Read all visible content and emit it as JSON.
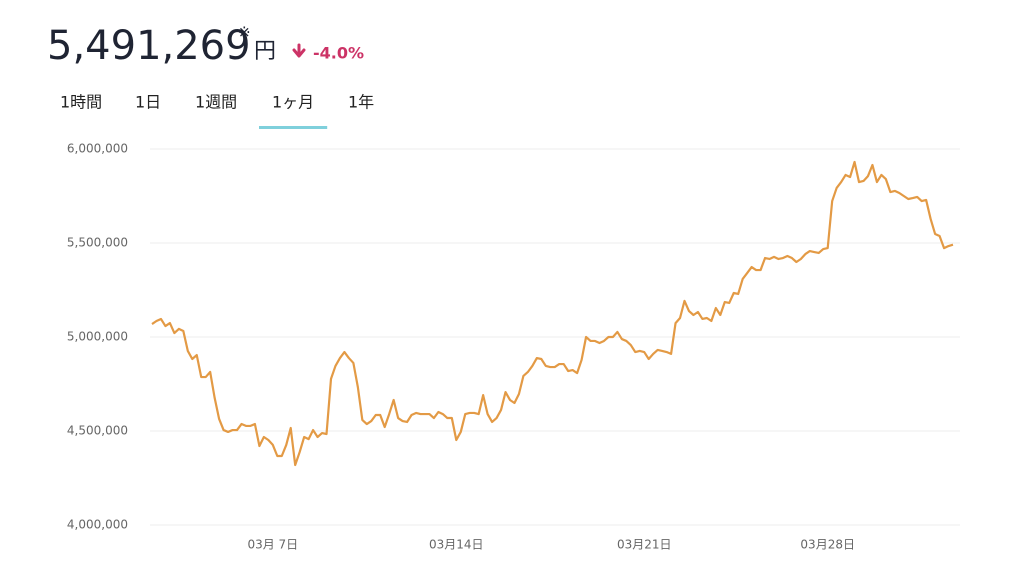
{
  "header": {
    "price": "5,491,269",
    "note_mark": "※",
    "unit": "円",
    "change": "-4.0%"
  },
  "tabs": [
    "1時間",
    "1日",
    "1週間",
    "1ヶ月",
    "1年"
  ],
  "active_tab": 3,
  "chart_data": {
    "type": "line",
    "color": "#e39a45",
    "grid": true,
    "ylim": [
      4000000,
      6000000
    ],
    "yticks": [
      {
        "value": 4000000,
        "label": "4,000,000"
      },
      {
        "value": 4500000,
        "label": "4,500,000"
      },
      {
        "value": 5000000,
        "label": "5,000,000"
      },
      {
        "value": 5500000,
        "label": "5,500,000"
      },
      {
        "value": 6000000,
        "label": "6,000,000"
      }
    ],
    "categories": [
      null,
      null,
      null,
      null,
      null,
      null,
      null,
      null,
      null,
      null,
      null,
      null,
      null,
      null,
      null,
      null,
      null,
      null,
      null,
      null,
      null,
      null,
      null,
      null,
      null,
      null,
      null,
      "03月 7日",
      null,
      null,
      null,
      null,
      null,
      null,
      null,
      null,
      null,
      null,
      null,
      null,
      null,
      null,
      null,
      null,
      null,
      null,
      null,
      null,
      null,
      null,
      null,
      null,
      null,
      null,
      null,
      null,
      null,
      null,
      null,
      null,
      null,
      null,
      null,
      null,
      null,
      null,
      null,
      null,
      "03月14日",
      null,
      null,
      null,
      null,
      null,
      null,
      null,
      null,
      null,
      null,
      null,
      null,
      null,
      null,
      null,
      null,
      null,
      null,
      null,
      null,
      null,
      null,
      null,
      null,
      null,
      null,
      null,
      null,
      null,
      null,
      null,
      null,
      null,
      null,
      null,
      null,
      null,
      null,
      null,
      null,
      null,
      "03月21日",
      null,
      null,
      null,
      null,
      null,
      null,
      null,
      null,
      null,
      null,
      null,
      null,
      null,
      null,
      null,
      null,
      null,
      null,
      null,
      null,
      null,
      null,
      null,
      null,
      null,
      null,
      null,
      null,
      null,
      null,
      null,
      null,
      null,
      null,
      null,
      null,
      null,
      null,
      null,
      null,
      "03月28日",
      null,
      null,
      null,
      null,
      null,
      null,
      null,
      null,
      null,
      null,
      null,
      null,
      null,
      null,
      null,
      null,
      null,
      null,
      null,
      null,
      null,
      null,
      null,
      null,
      null,
      null,
      null,
      null
    ],
    "values": [
      5069000,
      5085000,
      5096000,
      5058000,
      5074000,
      5021000,
      5043000,
      5032000,
      4926000,
      4883000,
      4904000,
      4787000,
      4787000,
      4814000,
      4676000,
      4564000,
      4505000,
      4495000,
      4505000,
      4505000,
      4537000,
      4527000,
      4527000,
      4537000,
      4420000,
      4468000,
      4452000,
      4426000,
      4367000,
      4367000,
      4426000,
      4516000,
      4319000,
      4388000,
      4468000,
      4457000,
      4505000,
      4468000,
      4489000,
      4484000,
      4777000,
      4846000,
      4888000,
      4920000,
      4888000,
      4862000,
      4734000,
      4559000,
      4537000,
      4553000,
      4585000,
      4585000,
      4521000,
      4590000,
      4665000,
      4569000,
      4553000,
      4548000,
      4585000,
      4596000,
      4590000,
      4590000,
      4590000,
      4569000,
      4601000,
      4590000,
      4569000,
      4569000,
      4452000,
      4495000,
      4590000,
      4596000,
      4596000,
      4590000,
      4691000,
      4590000,
      4548000,
      4569000,
      4612000,
      4707000,
      4665000,
      4649000,
      4697000,
      4793000,
      4814000,
      4846000,
      4888000,
      4883000,
      4846000,
      4840000,
      4840000,
      4856000,
      4856000,
      4819000,
      4824000,
      4808000,
      4878000,
      5000000,
      4979000,
      4979000,
      4968000,
      4979000,
      5000000,
      5000000,
      5027000,
      4989000,
      4979000,
      4957000,
      4920000,
      4926000,
      4920000,
      4883000,
      4910000,
      4931000,
      4926000,
      4920000,
      4910000,
      5074000,
      5101000,
      5192000,
      5138000,
      5117000,
      5133000,
      5096000,
      5101000,
      5085000,
      5154000,
      5117000,
      5186000,
      5181000,
      5234000,
      5229000,
      5309000,
      5340000,
      5372000,
      5356000,
      5356000,
      5420000,
      5415000,
      5426000,
      5415000,
      5420000,
      5431000,
      5420000,
      5399000,
      5415000,
      5441000,
      5457000,
      5452000,
      5447000,
      5468000,
      5473000,
      5723000,
      5793000,
      5824000,
      5862000,
      5851000,
      5931000,
      5824000,
      5830000,
      5856000,
      5915000,
      5824000,
      5862000,
      5840000,
      5771000,
      5777000,
      5766000,
      5750000,
      5734000,
      5739000,
      5745000,
      5723000,
      5729000,
      5628000,
      5548000,
      5537000,
      5473000,
      5484000,
      5491000
    ]
  }
}
